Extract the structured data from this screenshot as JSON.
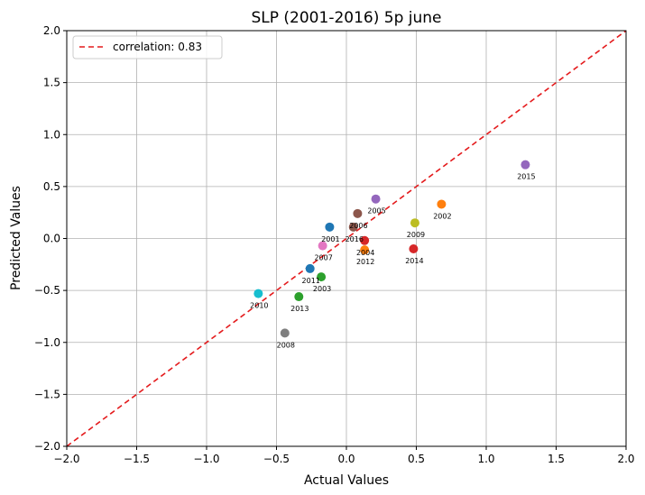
{
  "chart_data": {
    "type": "scatter",
    "title": "SLP (2001-2016) 5p june",
    "xlabel": "Actual Values",
    "ylabel": "Predicted Values",
    "xlim": [
      -2.0,
      2.0
    ],
    "ylim": [
      -2.0,
      2.0
    ],
    "x_ticks": [
      -2.0,
      -1.5,
      -1.0,
      -0.5,
      0.0,
      0.5,
      1.0,
      1.5,
      2.0
    ],
    "y_ticks": [
      -2.0,
      -1.5,
      -1.0,
      -0.5,
      0.0,
      0.5,
      1.0,
      1.5,
      2.0
    ],
    "x_tick_labels": [
      "−2.0",
      "−1.5",
      "−1.0",
      "−0.5",
      "0.0",
      "0.5",
      "1.0",
      "1.5",
      "2.0"
    ],
    "y_tick_labels": [
      "−2.0",
      "−1.5",
      "−1.0",
      "−0.5",
      "0.0",
      "0.5",
      "1.0",
      "1.5",
      "2.0"
    ],
    "grid": true,
    "legend": {
      "placement": "top-left",
      "entries": [
        "correlation: 0.83"
      ]
    },
    "reference_line": {
      "color": "#e41a1c",
      "style": "dashed",
      "from": [
        -2.0,
        -2.0
      ],
      "to": [
        2.0,
        2.0
      ]
    },
    "points": [
      {
        "label": "2001",
        "x": -0.12,
        "y": 0.11,
        "color": "#1f77b4"
      },
      {
        "label": "2002",
        "x": 0.68,
        "y": 0.33,
        "color": "#ff7f0e"
      },
      {
        "label": "2003",
        "x": -0.18,
        "y": -0.37,
        "color": "#2ca02c"
      },
      {
        "label": "2004",
        "x": 0.13,
        "y": -0.02,
        "color": "#d62728"
      },
      {
        "label": "2005",
        "x": 0.21,
        "y": 0.38,
        "color": "#9467bd"
      },
      {
        "label": "2006",
        "x": 0.08,
        "y": 0.24,
        "color": "#8c564b"
      },
      {
        "label": "2007",
        "x": -0.17,
        "y": -0.07,
        "color": "#e377c2"
      },
      {
        "label": "2008",
        "x": -0.44,
        "y": -0.91,
        "color": "#7f7f7f"
      },
      {
        "label": "2009",
        "x": 0.49,
        "y": 0.15,
        "color": "#bcbd22"
      },
      {
        "label": "2010",
        "x": -0.63,
        "y": -0.53,
        "color": "#17becf"
      },
      {
        "label": "2011",
        "x": -0.26,
        "y": -0.29,
        "color": "#1f77b4"
      },
      {
        "label": "2012",
        "x": 0.13,
        "y": -0.11,
        "color": "#ff7f0e"
      },
      {
        "label": "2013",
        "x": -0.34,
        "y": -0.56,
        "color": "#2ca02c"
      },
      {
        "label": "2014",
        "x": 0.48,
        "y": -0.1,
        "color": "#d62728"
      },
      {
        "label": "2015",
        "x": 1.28,
        "y": 0.71,
        "color": "#9467bd"
      },
      {
        "label": "2016",
        "x": 0.05,
        "y": 0.11,
        "color": "#8c564b"
      }
    ],
    "label_offsets_hint": "labels placed below-right of markers"
  }
}
